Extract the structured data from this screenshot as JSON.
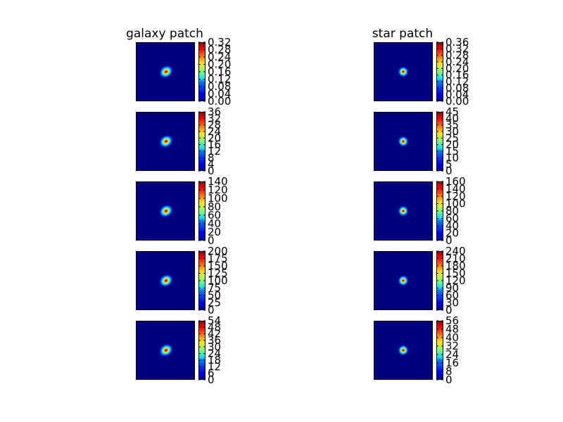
{
  "chart_data": {
    "type": "heatmap",
    "colormap": "jet",
    "columns": [
      {
        "title": "galaxy patch",
        "kind": "galaxy",
        "panels": [
          {
            "range": [
              0,
              0.32
            ],
            "ticks": [
              "0.00",
              "0.04",
              "0.08",
              "0.12",
              "0.16",
              "0.20",
              "0.24",
              "0.28",
              "0.32"
            ]
          },
          {
            "range": [
              0,
              36
            ],
            "ticks": [
              "0",
              "4",
              "8",
              "12",
              "16",
              "20",
              "24",
              "28",
              "32",
              "36"
            ]
          },
          {
            "range": [
              0,
              140
            ],
            "ticks": [
              "0",
              "20",
              "40",
              "60",
              "80",
              "100",
              "120",
              "140"
            ]
          },
          {
            "range": [
              0,
              200
            ],
            "ticks": [
              "0",
              "25",
              "50",
              "75",
              "100",
              "125",
              "150",
              "175",
              "200"
            ]
          },
          {
            "range": [
              0,
              54
            ],
            "ticks": [
              "0",
              "6",
              "12",
              "18",
              "24",
              "30",
              "36",
              "42",
              "48",
              "54"
            ]
          }
        ]
      },
      {
        "title": "star patch",
        "kind": "star",
        "panels": [
          {
            "range": [
              0,
              0.36
            ],
            "ticks": [
              "0.00",
              "0.04",
              "0.08",
              "0.12",
              "0.16",
              "0.20",
              "0.24",
              "0.28",
              "0.32",
              "0.36"
            ]
          },
          {
            "range": [
              0,
              45
            ],
            "ticks": [
              "0",
              "5",
              "10",
              "15",
              "20",
              "25",
              "30",
              "35",
              "40",
              "45"
            ]
          },
          {
            "range": [
              0,
              160
            ],
            "ticks": [
              "0",
              "20",
              "40",
              "60",
              "80",
              "100",
              "120",
              "140",
              "160"
            ]
          },
          {
            "range": [
              0,
              240
            ],
            "ticks": [
              "0",
              "30",
              "60",
              "90",
              "120",
              "150",
              "180",
              "210",
              "240"
            ]
          },
          {
            "range": [
              0,
              56
            ],
            "ticks": [
              "0",
              "8",
              "16",
              "24",
              "32",
              "40",
              "48",
              "56"
            ]
          }
        ]
      }
    ]
  }
}
